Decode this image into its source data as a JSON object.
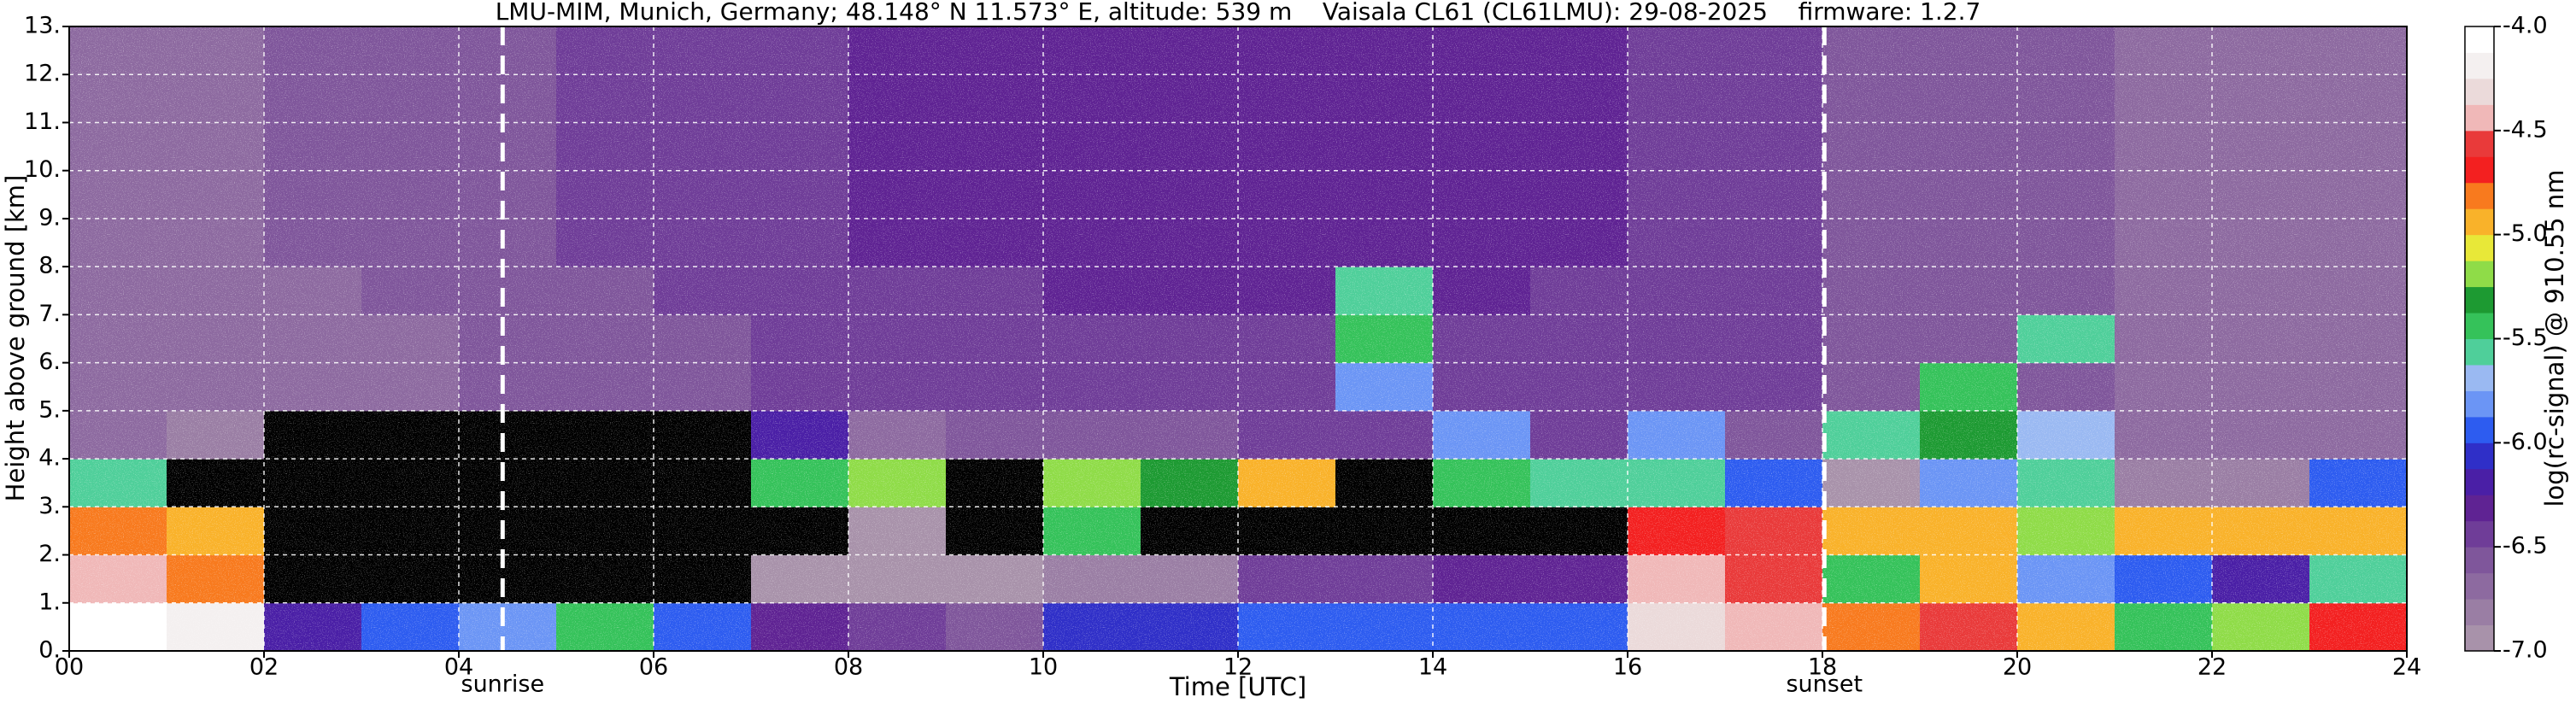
{
  "chart_data": {
    "type": "heatmap",
    "title": "LMU-MIM, Munich, Germany; 48.148° N 11.573° E, altitude: 539 m    Vaisala CL61 (CL61LMU): 29-08-2025    firmware: 1.2.7",
    "x_label": "Time [UTC]",
    "y_label": "Height above ground [km]",
    "colorbar_label": "log(rc-signal) @ 910.55 nm",
    "xlim": [
      0,
      24
    ],
    "ylim": [
      0,
      13
    ],
    "xticks": [
      {
        "value": 0,
        "label": "00"
      },
      {
        "value": 2,
        "label": "02"
      },
      {
        "value": 4,
        "label": "04"
      },
      {
        "value": 6,
        "label": "06"
      },
      {
        "value": 8,
        "label": "08"
      },
      10,
      12,
      14,
      16,
      18,
      20,
      22,
      24
    ],
    "yticks": [
      {
        "value": 0,
        "label": "0."
      },
      {
        "value": 1,
        "label": "1."
      },
      {
        "value": 2,
        "label": "2."
      },
      {
        "value": 3,
        "label": "3."
      },
      {
        "value": 4,
        "label": "4."
      },
      {
        "value": 5,
        "label": "5."
      },
      {
        "value": 6,
        "label": "6."
      },
      {
        "value": 7,
        "label": "7."
      },
      {
        "value": 8,
        "label": "8."
      },
      {
        "value": 9,
        "label": "9."
      },
      {
        "value": 10,
        "label": "10."
      },
      {
        "value": 11,
        "label": "11."
      },
      {
        "value": 12,
        "label": "12."
      },
      {
        "value": 13,
        "label": "13."
      }
    ],
    "grid": true,
    "clim": [
      -7,
      -4
    ],
    "cticks": [
      {
        "value": -4,
        "label": "-4.0"
      },
      -4.5,
      {
        "value": -5,
        "label": "-5.0"
      },
      -5.5,
      {
        "value": -6,
        "label": "-6.0"
      },
      -6.5,
      {
        "value": -7,
        "label": "-7.0"
      }
    ],
    "colormap": [
      "#a892aa",
      "#9a7ea4",
      "#8d6aa0",
      "#7f569b",
      "#6f3d98",
      "#5f2393",
      "#4a1fa6",
      "#2f2fc8",
      "#2d5cf0",
      "#6b95f5",
      "#9ab9f2",
      "#4fcf9a",
      "#35c25a",
      "#1d9a32",
      "#8fdc48",
      "#e8e838",
      "#f9b22a",
      "#f87a1e",
      "#f32020",
      "#e93a3a",
      "#f0b8b8",
      "#ebdada",
      "#f4f0f0",
      "#ffffff"
    ],
    "under_color": "#000000",
    "xbins": [
      0,
      1,
      2,
      3,
      4,
      5,
      6,
      7,
      8,
      9,
      10,
      11,
      12,
      13,
      14,
      15,
      16,
      17,
      18,
      19,
      20,
      21,
      22,
      23,
      24
    ],
    "ybins": [
      0,
      1,
      2,
      3,
      4,
      5,
      6,
      7,
      8,
      9,
      10,
      11,
      12,
      13
    ],
    "values": [
      [
        -4.1,
        -4.2,
        -6.2,
        -6.0,
        -5.8,
        -5.5,
        -6.0,
        -6.3,
        -6.5,
        -6.6,
        -6.1,
        -6.1,
        -6.0,
        -6.0,
        -6.0,
        -6.0,
        -4.3,
        -4.4,
        -4.8,
        -4.6,
        -5.0,
        -5.4,
        -5.2,
        -4.7
      ],
      [
        -4.5,
        -4.8,
        -7.2,
        -7.2,
        -7.2,
        -7.2,
        -7.2,
        -6.9,
        -6.9,
        -6.9,
        -6.8,
        -6.8,
        -6.4,
        -6.4,
        -6.3,
        -6.3,
        -4.5,
        -4.6,
        -5.5,
        -4.9,
        -5.8,
        -6.0,
        -6.2,
        -5.6
      ],
      [
        -4.8,
        -4.9,
        -7.2,
        -7.2,
        -7.2,
        -7.2,
        -7.2,
        -7.1,
        -7.0,
        -7.1,
        -5.5,
        -7.1,
        -7.2,
        -7.2,
        -7.2,
        -7.2,
        -4.7,
        -4.6,
        -5.0,
        -5.0,
        -5.2,
        -5.0,
        -5.0,
        -5.0
      ],
      [
        -5.6,
        -7.2,
        -7.2,
        -7.2,
        -7.2,
        -7.2,
        -7.2,
        -5.4,
        -5.2,
        -7.1,
        -5.2,
        -5.3,
        -5.0,
        -7.2,
        -5.5,
        -5.6,
        -5.6,
        -6.0,
        -6.9,
        -5.8,
        -5.6,
        -6.8,
        -6.8,
        -6.0
      ],
      [
        -6.7,
        -6.8,
        -7.2,
        -7.2,
        -7.2,
        -7.2,
        -7.2,
        -6.2,
        -6.7,
        -6.6,
        -6.6,
        -6.6,
        -6.5,
        -6.5,
        -5.8,
        -6.5,
        -5.8,
        -6.6,
        -5.6,
        -5.3,
        -5.7,
        -6.7,
        -6.7,
        -6.7
      ],
      [
        -6.7,
        -6.7,
        -6.7,
        -6.7,
        -6.6,
        -6.6,
        -6.6,
        -6.5,
        -6.5,
        -6.4,
        -6.4,
        -6.4,
        -6.4,
        -5.8,
        -6.4,
        -6.4,
        -6.5,
        -6.5,
        -6.6,
        -5.5,
        -6.6,
        -6.7,
        -6.7,
        -6.7
      ],
      [
        -6.7,
        -6.7,
        -6.7,
        -6.7,
        -6.6,
        -6.6,
        -6.6,
        -6.5,
        -6.4,
        -6.4,
        -6.4,
        -6.4,
        -6.4,
        -5.4,
        -6.4,
        -6.4,
        -6.5,
        -6.5,
        -6.6,
        -6.6,
        -5.6,
        -6.7,
        -6.7,
        -6.7
      ],
      [
        -6.7,
        -6.7,
        -6.7,
        -6.6,
        -6.6,
        -6.6,
        -6.5,
        -6.5,
        -6.4,
        -6.4,
        -6.3,
        -6.3,
        -6.3,
        -5.6,
        -6.3,
        -6.4,
        -6.4,
        -6.5,
        -6.6,
        -6.6,
        -6.6,
        -6.7,
        -6.7,
        -6.7
      ],
      [
        -6.7,
        -6.7,
        -6.6,
        -6.6,
        -6.6,
        -6.5,
        -6.5,
        -6.4,
        -6.3,
        -6.3,
        -6.3,
        -6.3,
        -6.3,
        -6.3,
        -6.3,
        -6.3,
        -6.4,
        -6.5,
        -6.6,
        -6.6,
        -6.6,
        -6.7,
        -6.7,
        -6.7
      ],
      [
        -6.7,
        -6.7,
        -6.6,
        -6.6,
        -6.6,
        -6.5,
        -6.5,
        -6.4,
        -6.3,
        -6.3,
        -6.3,
        -6.3,
        -6.3,
        -6.3,
        -6.3,
        -6.3,
        -6.4,
        -6.5,
        -6.6,
        -6.6,
        -6.6,
        -6.7,
        -6.7,
        -6.7
      ],
      [
        -6.7,
        -6.7,
        -6.6,
        -6.6,
        -6.6,
        -6.5,
        -6.5,
        -6.4,
        -6.3,
        -6.3,
        -6.3,
        -6.3,
        -6.3,
        -6.3,
        -6.3,
        -6.3,
        -6.4,
        -6.5,
        -6.6,
        -6.6,
        -6.6,
        -6.7,
        -6.7,
        -6.7
      ],
      [
        -6.7,
        -6.7,
        -6.6,
        -6.6,
        -6.6,
        -6.5,
        -6.5,
        -6.4,
        -6.3,
        -6.3,
        -6.3,
        -6.3,
        -6.3,
        -6.3,
        -6.3,
        -6.3,
        -6.4,
        -6.5,
        -6.6,
        -6.6,
        -6.6,
        -6.7,
        -6.7,
        -6.7
      ],
      [
        -6.7,
        -6.7,
        -6.6,
        -6.6,
        -6.6,
        -6.5,
        -6.5,
        -6.4,
        -6.3,
        -6.3,
        -6.3,
        -6.3,
        -6.3,
        -6.3,
        -6.3,
        -6.3,
        -6.4,
        -6.5,
        -6.6,
        -6.6,
        -6.6,
        -6.7,
        -6.7,
        -6.7
      ]
    ],
    "annotations": [
      {
        "label": "sunrise",
        "x": 4.45
      },
      {
        "label": "sunset",
        "x": 18.02
      }
    ]
  }
}
